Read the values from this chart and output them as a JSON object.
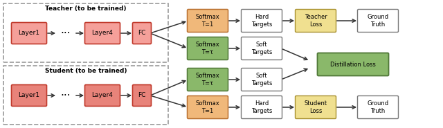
{
  "figsize": [
    6.4,
    1.85
  ],
  "dpi": 100,
  "bg_color": "#ffffff",
  "colors": {
    "red_box_fill_light": "#f5a09a",
    "red_box_fill_dark": "#e8837a",
    "red_box_edge": "#c0392b",
    "orange_box_fill": "#f0b87a",
    "orange_box_edge": "#b87030",
    "green_box_fill": "#8ab86a",
    "green_box_edge": "#507838",
    "white_box_fill": "#ffffff",
    "white_box_edge": "#777777",
    "yellow_box_fill": "#f0e090",
    "yellow_box_edge": "#a89030",
    "dist_box_fill": "#8ab86a",
    "dist_box_edge": "#507838",
    "dashed_box_edge": "#999999",
    "arrow_color": "#333333"
  },
  "teacher_label": "Teacher (to be trained)",
  "student_label": "Student (to be trained)",
  "distillation_label": "Distillation Loss",
  "layer_boxes": [
    "Layer1",
    "Layer4",
    "FC"
  ],
  "teacher_top": [
    "Softmax\nT=1",
    "Hard\nTargets",
    "Teacher\nLoss",
    "Ground\nTruth"
  ],
  "teacher_bot": [
    "Softmax\nT=τ",
    "Soft\nTargets"
  ],
  "student_top": [
    "Softmax\nT=τ",
    "Soft\nTargets"
  ],
  "student_bot": [
    "Softmax\nT=1",
    "Hard\nTargets",
    "Student\nLoss",
    "Ground\nTruth"
  ]
}
